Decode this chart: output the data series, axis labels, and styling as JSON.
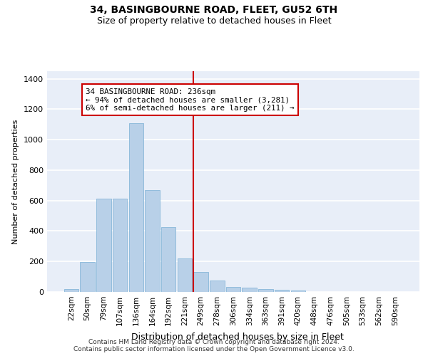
{
  "title": "34, BASINGBOURNE ROAD, FLEET, GU52 6TH",
  "subtitle": "Size of property relative to detached houses in Fleet",
  "xlabel": "Distribution of detached houses by size in Fleet",
  "ylabel": "Number of detached properties",
  "bar_heights": [
    20,
    195,
    615,
    615,
    1110,
    670,
    425,
    220,
    130,
    75,
    35,
    30,
    20,
    15,
    10,
    0,
    0,
    0,
    0,
    0,
    0
  ],
  "bar_labels": [
    "22sqm",
    "50sqm",
    "79sqm",
    "107sqm",
    "136sqm",
    "164sqm",
    "192sqm",
    "221sqm",
    "249sqm",
    "278sqm",
    "306sqm",
    "334sqm",
    "363sqm",
    "391sqm",
    "420sqm",
    "448sqm",
    "476sqm",
    "505sqm",
    "533sqm",
    "562sqm",
    "590sqm"
  ],
  "property_label": "34 BASINGBOURNE ROAD: 236sqm",
  "annotation_line1": "← 94% of detached houses are smaller (3,281)",
  "annotation_line2": "6% of semi-detached houses are larger (211) →",
  "bar_color": "#b8d0e8",
  "bar_edge_color": "#7aafd4",
  "vline_color": "#cc0000",
  "annotation_box_color": "#cc0000",
  "bg_color": "#e8eef8",
  "ylim": [
    0,
    1450
  ],
  "yticks": [
    0,
    200,
    400,
    600,
    800,
    1000,
    1200,
    1400
  ],
  "vline_index": 7.54,
  "footer_line1": "Contains HM Land Registry data © Crown copyright and database right 2024.",
  "footer_line2": "Contains public sector information licensed under the Open Government Licence v3.0."
}
